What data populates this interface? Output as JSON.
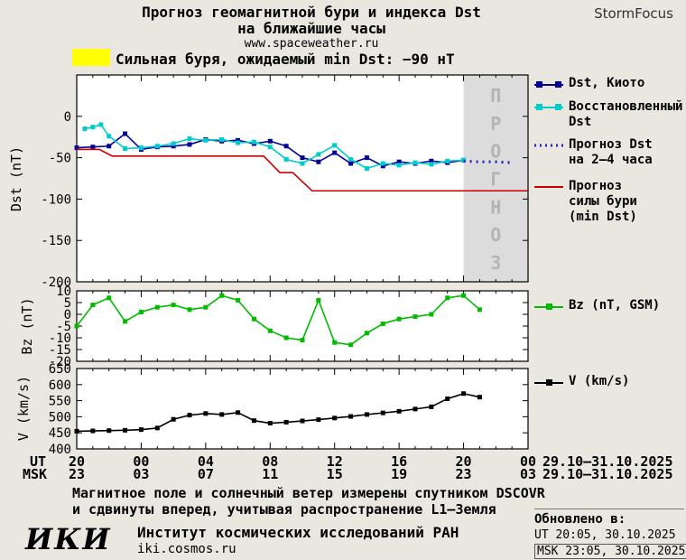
{
  "header": {
    "title_line1": "Прогноз геомагнитной бури и индекса Dst",
    "title_line2": "на ближайшие часы",
    "url": "www.spaceweather.ru",
    "brand": "StormFocus"
  },
  "alert": {
    "swatch_color": "#ffff00",
    "text": "Сильная буря, ожидаемый min Dst: −90 нТ"
  },
  "legend": {
    "dst_kyoto": "Dst, Киото",
    "restored": [
      "Восстановленный",
      "Dst"
    ],
    "forecast": [
      "Прогноз Dst",
      "на 2–4 часа"
    ],
    "storm": [
      "Прогноз",
      "силы бури",
      "(min Dst)"
    ],
    "bz": "Bz (nT, GSM)",
    "v": "V (km/s)"
  },
  "x_axis": {
    "ut_label": "UT",
    "msk_label": "MSK",
    "ut_date": "29.10–31.10.2025",
    "msk_date": "29.10–31.10.2025"
  },
  "footnote": [
    "Магнитное поле и солнечный ветер измерены спутником DSCOVR",
    "и сдвинуты вперед, учитывая распространение L1–Земля"
  ],
  "footer": {
    "logo": "ИКИ",
    "institute": "Институт космических исследований РАН",
    "site": "iki.cosmos.ru",
    "updated_label": "Обновлено в:",
    "updated_ut": "UT  20:05, 30.10.2025",
    "updated_msk": "MSK 23:05, 30.10.2025"
  },
  "chart_data": [
    {
      "type": "line",
      "ylabel": "Dst (nT)",
      "ylim": [
        -200,
        50
      ],
      "yticks": [
        0,
        -50,
        -100,
        -150,
        -200
      ],
      "xlim": [
        0,
        28
      ],
      "xtick_hours": [
        0,
        4,
        8,
        12,
        16,
        20,
        24,
        28
      ],
      "xticks_ut": [
        "20",
        "00",
        "04",
        "08",
        "12",
        "16",
        "20",
        "00"
      ],
      "xticks_msk": [
        "23",
        "03",
        "07",
        "11",
        "15",
        "19",
        "23",
        "03"
      ],
      "forecast_band": {
        "x": [
          24,
          28
        ],
        "label": "ПРОГНОЗ",
        "fill": "#dcdcdc",
        "text_color": "#b4b4b4"
      },
      "series": [
        {
          "name": "Dst, Киото",
          "color": "#000099",
          "marker": "square",
          "x": [
            0,
            1,
            2,
            3,
            4,
            5,
            6,
            7,
            8,
            9,
            10,
            11,
            12,
            13,
            14,
            15,
            16,
            17,
            18,
            19,
            20,
            21,
            22,
            23,
            24
          ],
          "y": [
            -38,
            -37,
            -36,
            -21,
            -40,
            -37,
            -36,
            -34,
            -28,
            -30,
            -29,
            -33,
            -30,
            -36,
            -50,
            -55,
            -44,
            -57,
            -50,
            -60,
            -55,
            -57,
            -54,
            -56,
            -53
          ]
        },
        {
          "name": "Восстановленный Dst",
          "color": "#00cccc",
          "marker": "square",
          "x": [
            0.5,
            1,
            1.5,
            2,
            3,
            4,
            5,
            6,
            7,
            8,
            9,
            10,
            11,
            12,
            13,
            14,
            15,
            16,
            17,
            18,
            19,
            20,
            21,
            22,
            23,
            24
          ],
          "y": [
            -15,
            -13,
            -10,
            -24,
            -39,
            -38,
            -36,
            -33,
            -27,
            -29,
            -28,
            -32,
            -31,
            -37,
            -52,
            -57,
            -46,
            -35,
            -52,
            -63,
            -57,
            -59,
            -56,
            -58,
            -54,
            -53
          ]
        },
        {
          "name": "Прогноз Dst на 2–4 часа",
          "color": "#2222bb",
          "style": "dotted",
          "x": [
            24,
            25,
            26,
            27
          ],
          "y": [
            -54,
            -55,
            -55,
            -56
          ]
        },
        {
          "name": "Прогноз силы бури (min Dst)",
          "color": "#cc0000",
          "x": [
            0,
            1.4,
            2.2,
            11.6,
            12.6,
            13.4,
            14.6,
            28
          ],
          "y": [
            -40,
            -40,
            -48,
            -48,
            -68,
            -68,
            -90,
            -90
          ]
        }
      ]
    },
    {
      "type": "line",
      "ylabel": "Bz (nT)",
      "ylim": [
        -20,
        10
      ],
      "yticks": [
        10,
        5,
        0,
        -5,
        -10,
        -15,
        -20
      ],
      "xlim": [
        0,
        28
      ],
      "series": [
        {
          "name": "Bz (nT, GSM)",
          "color": "#00bb00",
          "marker": "square",
          "x": [
            0,
            1,
            2,
            3,
            4,
            5,
            6,
            7,
            8,
            9,
            10,
            11,
            12,
            13,
            14,
            15,
            16,
            17,
            18,
            19,
            20,
            21,
            22,
            23,
            24,
            25
          ],
          "y": [
            -5,
            4,
            7,
            -3,
            1,
            3,
            4,
            2,
            3,
            8,
            6,
            -2,
            -7,
            -10,
            -11,
            6,
            -12,
            -13,
            -8,
            -4,
            -2,
            -1,
            0,
            7,
            8,
            2
          ]
        }
      ]
    },
    {
      "type": "line",
      "ylabel": "V (km/s)",
      "ylim": [
        400,
        650
      ],
      "yticks": [
        650,
        600,
        550,
        500,
        450,
        400
      ],
      "xlim": [
        0,
        28
      ],
      "series": [
        {
          "name": "V (km/s)",
          "color": "#000000",
          "marker": "square",
          "x": [
            0,
            1,
            2,
            3,
            4,
            5,
            6,
            7,
            8,
            9,
            10,
            11,
            12,
            13,
            14,
            15,
            16,
            17,
            18,
            19,
            20,
            21,
            22,
            23,
            24,
            25
          ],
          "y": [
            455,
            456,
            457,
            458,
            460,
            465,
            492,
            505,
            510,
            507,
            513,
            488,
            480,
            483,
            487,
            491,
            496,
            501,
            507,
            512,
            517,
            524,
            531,
            556,
            572,
            561
          ]
        }
      ]
    }
  ]
}
